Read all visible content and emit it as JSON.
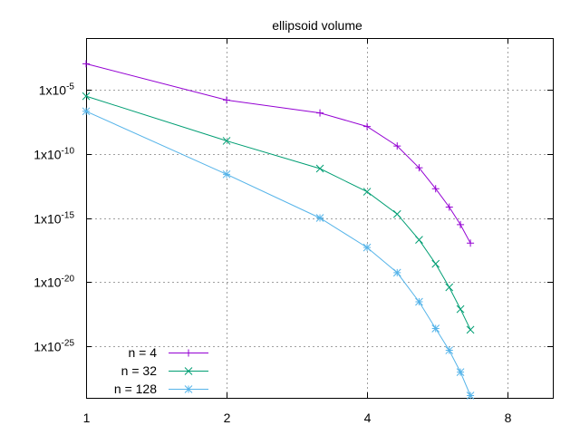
{
  "chart_data": {
    "type": "line",
    "title": "ellipsoid volume",
    "xlabel": "",
    "ylabel": "",
    "x_scale": "log2",
    "y_scale": "log10",
    "xlim": [
      1,
      10
    ],
    "ylim": [
      1e-29,
      0.1
    ],
    "x_ticks": [
      {
        "value": 1,
        "label": "1"
      },
      {
        "value": 2,
        "label": "2"
      },
      {
        "value": 4,
        "label": "4"
      },
      {
        "value": 8,
        "label": "8"
      }
    ],
    "y_ticks": [
      {
        "value": 1e-05,
        "base": "1x10",
        "exp": "-5"
      },
      {
        "value": 1e-10,
        "base": "1x10",
        "exp": "-10"
      },
      {
        "value": 1e-15,
        "base": "1x10",
        "exp": "-15"
      },
      {
        "value": 1e-20,
        "base": "1x10",
        "exp": "-20"
      },
      {
        "value": 1e-25,
        "base": "1x10",
        "exp": "-25"
      }
    ],
    "grid": true,
    "legend_position": "bottom-left",
    "x": [
      1,
      2,
      3.17,
      4,
      4.64,
      5.17,
      5.61,
      6,
      6.34,
      6.66
    ],
    "series": [
      {
        "name": "n = 4",
        "color": "#9400d3",
        "marker": "plus",
        "values": [
          0.001,
          1.5e-06,
          1.5e-07,
          1.3e-08,
          4e-10,
          8e-12,
          1.9e-13,
          7e-15,
          3e-16,
          1.1e-17
        ]
      },
      {
        "name": "n = 32",
        "color": "#009e73",
        "marker": "x",
        "values": [
          3e-06,
          1e-09,
          7e-12,
          1.1e-13,
          2e-15,
          2e-17,
          2.7e-19,
          4e-21,
          8e-23,
          2e-24
        ]
      },
      {
        "name": "n = 128",
        "color": "#56b4e9",
        "marker": "star",
        "values": [
          2e-07,
          2.5e-12,
          1e-15,
          5e-18,
          5.5e-20,
          3e-22,
          2.5e-24,
          5e-26,
          1e-27,
          1.5e-29
        ]
      }
    ]
  }
}
